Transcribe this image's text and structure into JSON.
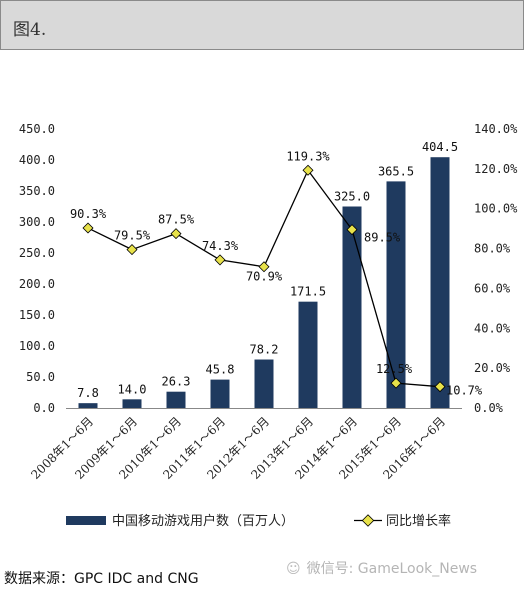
{
  "caption": "图4.",
  "source": "数据来源：GPC IDC and CNG",
  "watermark": {
    "icon": "wechat-icon",
    "text": "微信号: GameLook_News"
  },
  "colors": {
    "bar": "#1f3a5f",
    "line": "#000000",
    "marker": "#e8e24a"
  },
  "chart_data": {
    "type": "bar",
    "categories": [
      "2008年1～6月",
      "2009年1～6月",
      "2010年1～6月",
      "2011年1～6月",
      "2012年1～6月",
      "2013年1～6月",
      "2014年1～6月",
      "2015年1～6月",
      "2016年1～6月"
    ],
    "series": [
      {
        "name": "中国移动游戏用户数（百万人）",
        "type": "bar",
        "axis": "left",
        "values": [
          7.8,
          14.0,
          26.3,
          45.8,
          78.2,
          171.5,
          325.0,
          365.5,
          404.5
        ],
        "labels": [
          "7.8",
          "14.0",
          "26.3",
          "45.8",
          "78.2",
          "171.5",
          "325.0",
          "365.5",
          "404.5"
        ]
      },
      {
        "name": "同比增长率",
        "type": "line",
        "axis": "right",
        "values": [
          90.3,
          79.5,
          87.5,
          74.3,
          70.9,
          119.3,
          89.5,
          12.5,
          10.7
        ],
        "labels": [
          "90.3%",
          "79.5%",
          "87.5%",
          "74.3%",
          "70.9%",
          "119.3%",
          "89.5%",
          "12.5%",
          "10.7%"
        ]
      }
    ],
    "y_left": {
      "min": 0,
      "max": 450,
      "ticks": [
        "0.0",
        "50.0",
        "100.0",
        "150.0",
        "200.0",
        "250.0",
        "300.0",
        "350.0",
        "400.0",
        "450.0"
      ]
    },
    "y_right": {
      "min": 0,
      "max": 140,
      "ticks": [
        "0.0%",
        "20.0%",
        "40.0%",
        "60.0%",
        "80.0%",
        "100.0%",
        "120.0%",
        "140.0%"
      ]
    },
    "legend_position": "bottom",
    "grid": false
  }
}
